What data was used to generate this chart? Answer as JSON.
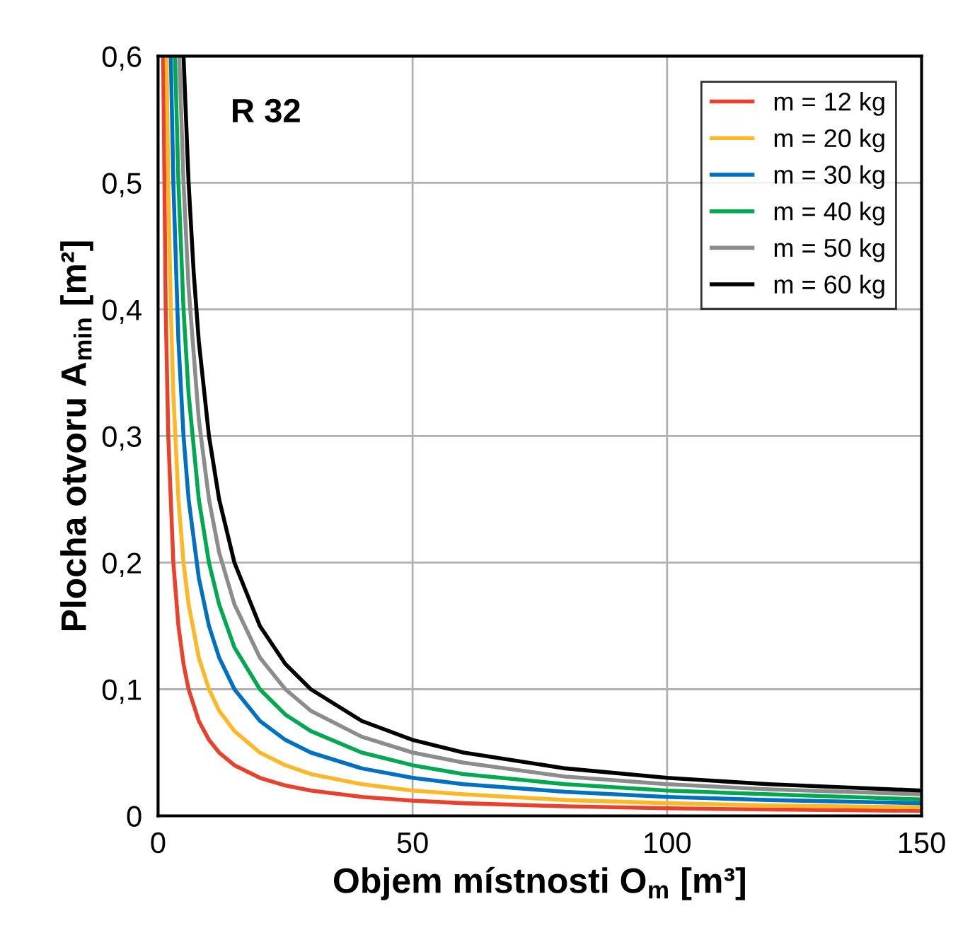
{
  "chart_data": {
    "type": "line",
    "xlabel": "Objem místnosti O$_{m}$ [m³]",
    "ylabel": "Plocha otvoru A$_{min}$ [m²]",
    "annotations": [
      "R 32"
    ],
    "series": [
      {
        "name": "m = 12 kg",
        "color": "#e8412c",
        "x": [
          1,
          1.5,
          2,
          3,
          4,
          5,
          6,
          8,
          10,
          12,
          15,
          20,
          25,
          30,
          40,
          50,
          60,
          80,
          100,
          120,
          150
        ],
        "values": [
          0.6,
          0.4,
          0.3,
          0.2,
          0.15,
          0.12,
          0.1,
          0.075,
          0.06,
          0.05,
          0.04,
          0.03,
          0.024,
          0.02,
          0.015,
          0.012,
          0.01,
          0.0075,
          0.006,
          0.005,
          0.004
        ]
      },
      {
        "name": "m = 20 kg",
        "color": "#fdb827",
        "x": [
          1.67,
          2,
          2.5,
          3,
          4,
          5,
          6,
          8,
          10,
          12,
          15,
          20,
          25,
          30,
          40,
          50,
          60,
          80,
          100,
          120,
          150
        ],
        "values": [
          0.6,
          0.5,
          0.4,
          0.333,
          0.25,
          0.2,
          0.167,
          0.125,
          0.1,
          0.083,
          0.067,
          0.05,
          0.04,
          0.033,
          0.025,
          0.02,
          0.017,
          0.0125,
          0.01,
          0.0083,
          0.0067
        ]
      },
      {
        "name": "m = 30 kg",
        "color": "#0070c0",
        "x": [
          2.5,
          3,
          4,
          5,
          6,
          8,
          10,
          12,
          15,
          20,
          25,
          30,
          40,
          50,
          60,
          80,
          100,
          120,
          150
        ],
        "values": [
          0.6,
          0.5,
          0.375,
          0.3,
          0.25,
          0.188,
          0.15,
          0.125,
          0.1,
          0.075,
          0.06,
          0.05,
          0.0375,
          0.03,
          0.025,
          0.019,
          0.015,
          0.0125,
          0.01
        ]
      },
      {
        "name": "m = 40 kg",
        "color": "#00a850",
        "x": [
          3.33,
          4,
          5,
          6,
          8,
          10,
          12,
          15,
          20,
          25,
          30,
          40,
          50,
          60,
          80,
          100,
          120,
          150
        ],
        "values": [
          0.6,
          0.5,
          0.4,
          0.333,
          0.25,
          0.2,
          0.167,
          0.133,
          0.1,
          0.08,
          0.067,
          0.05,
          0.04,
          0.033,
          0.025,
          0.02,
          0.017,
          0.013
        ]
      },
      {
        "name": "m = 50 kg",
        "color": "#8c8c8c",
        "x": [
          4.17,
          5,
          6,
          8,
          10,
          12,
          15,
          20,
          25,
          30,
          40,
          50,
          60,
          80,
          100,
          120,
          150
        ],
        "values": [
          0.6,
          0.5,
          0.417,
          0.313,
          0.25,
          0.208,
          0.167,
          0.125,
          0.1,
          0.083,
          0.0625,
          0.05,
          0.042,
          0.031,
          0.025,
          0.021,
          0.017
        ]
      },
      {
        "name": "m = 60 kg",
        "color": "#000000",
        "x": [
          5,
          6,
          7,
          8,
          10,
          12,
          15,
          20,
          25,
          30,
          40,
          50,
          60,
          80,
          100,
          120,
          150
        ],
        "values": [
          0.6,
          0.5,
          0.429,
          0.375,
          0.3,
          0.25,
          0.2,
          0.15,
          0.12,
          0.1,
          0.075,
          0.06,
          0.05,
          0.0375,
          0.03,
          0.025,
          0.02
        ]
      }
    ],
    "xlim": [
      0,
      150
    ],
    "xticks": [
      0,
      50,
      100,
      150
    ],
    "ylim": [
      0,
      0.6
    ],
    "yticks": [
      0,
      {
        "value": 0.1,
        "label": "0,1"
      },
      {
        "value": 0.2,
        "label": "0,2"
      },
      {
        "value": 0.3,
        "label": "0,3"
      },
      {
        "value": 0.4,
        "label": "0,4"
      },
      {
        "value": 0.5,
        "label": "0,5"
      },
      {
        "value": 0.6,
        "label": "0,6"
      }
    ],
    "grid": true,
    "legend": "top right",
    "marker": "none",
    "line_style": "solid"
  }
}
